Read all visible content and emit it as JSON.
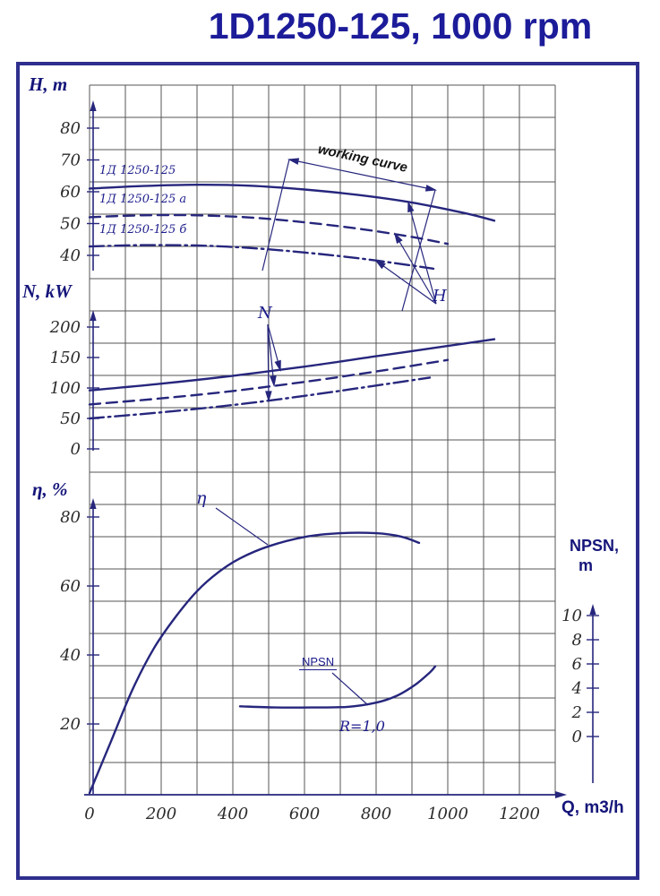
{
  "title": "1D1250-125, 1000 rpm",
  "axes": {
    "h": {
      "label": "H, m"
    },
    "n": {
      "label": "N, kW"
    },
    "eta": {
      "label": "η, %"
    },
    "npsn": {
      "label": "NPSN,",
      "label2": "m"
    },
    "q": {
      "label": "Q, m3/h"
    }
  },
  "annotations": {
    "working_curve": "working curve",
    "h_pointer": "H",
    "n_pointer": "N",
    "eta_pointer": "η",
    "npsn_pointer": "NPSN",
    "r_factor": "R=1,0"
  },
  "series_labels": [
    "1Д 1250-125",
    "1Д 1250-125 а",
    "1Д 1250-125 б"
  ],
  "colors": {
    "accent": "#26267d",
    "title": "#1c1c9a",
    "frame": "#2e2e8e",
    "grid": "#555555",
    "tick_text": "#2b2b2b"
  },
  "chart_data": {
    "type": "line",
    "title": "1D1250-125, 1000 rpm",
    "xlabel": "Q, m3/h",
    "x_units": "m3/h",
    "x_range": [
      0,
      1300
    ],
    "x_ticks": [
      0,
      200,
      400,
      600,
      800,
      1000,
      1200
    ],
    "grid": true,
    "legend_position": "none",
    "panels": [
      {
        "id": "head",
        "ylabel": "H, m",
        "ylim": [
          40,
          85
        ],
        "y_ticks": [
          80,
          70,
          60,
          50,
          40
        ],
        "working_range_q": [
          500,
          1000
        ],
        "series": [
          {
            "name": "1Д 1250-125",
            "line": "solid",
            "points": [
              [
                0,
                61
              ],
              [
                150,
                61.8
              ],
              [
                300,
                62.2
              ],
              [
                450,
                61.9
              ],
              [
                600,
                60.7
              ],
              [
                750,
                59
              ],
              [
                900,
                56.6
              ],
              [
                1050,
                53.2
              ],
              [
                1130,
                50.9
              ]
            ]
          },
          {
            "name": "1Д 1250-125 а",
            "line": "dashed",
            "points": [
              [
                0,
                52
              ],
              [
                150,
                52.6
              ],
              [
                300,
                52.6
              ],
              [
                450,
                51.9
              ],
              [
                600,
                50.4
              ],
              [
                750,
                48.4
              ],
              [
                900,
                45.8
              ],
              [
                1000,
                43.6
              ]
            ]
          },
          {
            "name": "1Д 1250-125 б",
            "line": "dashdot",
            "points": [
              [
                0,
                42.8
              ],
              [
                150,
                43.2
              ],
              [
                300,
                43.1
              ],
              [
                450,
                42.3
              ],
              [
                600,
                40.9
              ],
              [
                750,
                39.1
              ],
              [
                900,
                36.8
              ],
              [
                960,
                35.8
              ]
            ]
          }
        ]
      },
      {
        "id": "power",
        "ylabel": "N, kW",
        "ylim": [
          0,
          220
        ],
        "y_ticks": [
          200,
          150,
          100,
          50,
          0
        ],
        "series": [
          {
            "name": "1Д 1250-125",
            "line": "solid",
            "points": [
              [
                0,
                96
              ],
              [
                200,
                107
              ],
              [
                400,
                120
              ],
              [
                600,
                135
              ],
              [
                800,
                152
              ],
              [
                1000,
                169
              ],
              [
                1130,
                180
              ]
            ]
          },
          {
            "name": "1Д 1250-125 а",
            "line": "dashed",
            "points": [
              [
                0,
                73
              ],
              [
                200,
                83
              ],
              [
                400,
                95
              ],
              [
                600,
                110
              ],
              [
                800,
                127
              ],
              [
                1000,
                146
              ]
            ]
          },
          {
            "name": "1Д 1250-125 б",
            "line": "dashdot",
            "points": [
              [
                0,
                50
              ],
              [
                200,
                60
              ],
              [
                400,
                72
              ],
              [
                600,
                87
              ],
              [
                800,
                104
              ],
              [
                950,
                117
              ]
            ]
          }
        ]
      },
      {
        "id": "efficiency",
        "ylabel": "η, %",
        "ylim": [
          0,
          85
        ],
        "y_ticks": [
          80,
          60,
          40,
          20
        ],
        "series": [
          {
            "name": "η",
            "line": "solid",
            "points": [
              [
                0,
                0
              ],
              [
                60,
                15
              ],
              [
                120,
                30
              ],
              [
                180,
                42
              ],
              [
                240,
                51
              ],
              [
                300,
                58.5
              ],
              [
                360,
                64
              ],
              [
                420,
                68
              ],
              [
                500,
                71.5
              ],
              [
                600,
                74.2
              ],
              [
                700,
                75.3
              ],
              [
                800,
                75.3
              ],
              [
                870,
                74.3
              ],
              [
                920,
                72.5
              ]
            ]
          }
        ]
      },
      {
        "id": "npsn",
        "ylabel": "NPSN, m",
        "ylim": [
          0,
          10
        ],
        "y_ticks": [
          10,
          8,
          6,
          4,
          2,
          0
        ],
        "series": [
          {
            "name": "NPSN",
            "line": "solid",
            "note": "R=1,0",
            "points": [
              [
                420,
                2.5
              ],
              [
                520,
                2.4
              ],
              [
                620,
                2.4
              ],
              [
                720,
                2.45
              ],
              [
                800,
                2.8
              ],
              [
                860,
                3.4
              ],
              [
                910,
                4.3
              ],
              [
                950,
                5.3
              ],
              [
                965,
                5.8
              ]
            ]
          }
        ]
      }
    ]
  }
}
